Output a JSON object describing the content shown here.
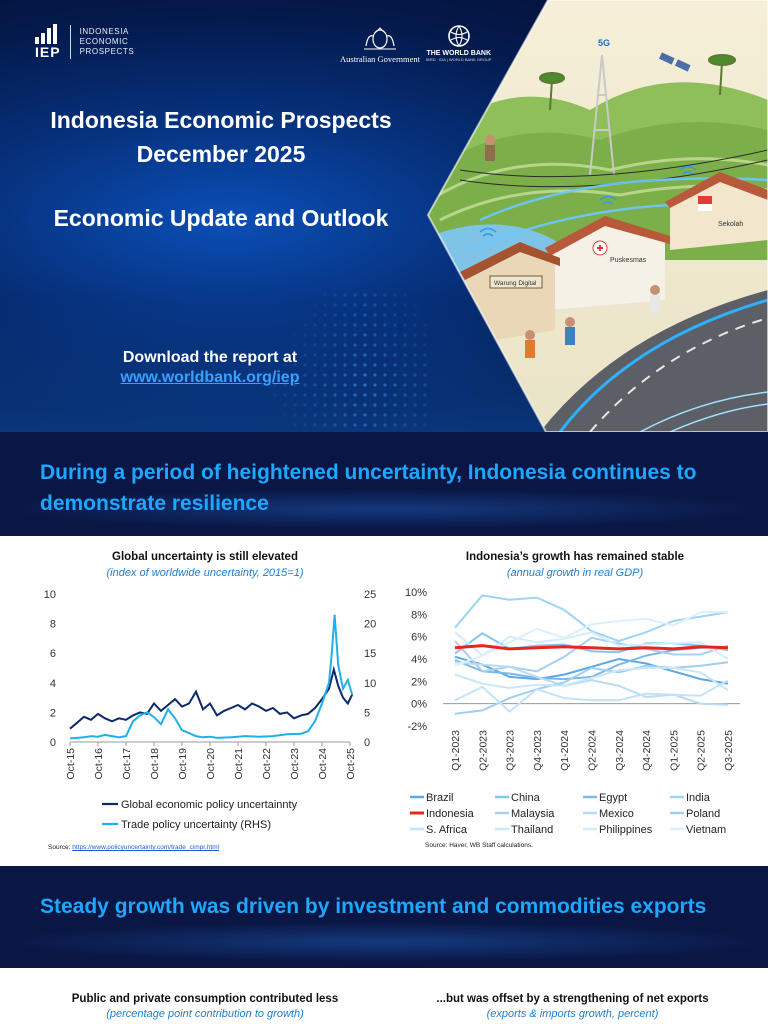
{
  "header": {
    "logo_abbr": "IEP",
    "logo_text": [
      "INDONESIA",
      "ECONOMIC",
      "PROSPECTS"
    ],
    "partner_gov": "Australian Government",
    "partner_wb": "THE WORLD BANK",
    "partner_wb_sub": "IBRD · IDA | WORLD BANK GROUP"
  },
  "hero": {
    "title_line1": "Indonesia Economic Prospects",
    "title_line2": "December 2025",
    "title_line3": "Economic Update and Outlook",
    "download_label": "Download the report at",
    "download_link": "www.worldbank.org/iep",
    "illustration_labels": {
      "tower": "5G",
      "shop": "Warung Digital",
      "clinic": "Puskesmas",
      "school": "Sekolah"
    }
  },
  "section1": {
    "heading": "During a period of heightened uncertainty, Indonesia continues to demonstrate resilience"
  },
  "section2": {
    "heading": "Steady growth was driven by investment and commodities exports"
  },
  "bottom_charts": {
    "left_title": "Public and private consumption contributed less",
    "left_subtitle": "(percentage point contribution to growth)",
    "right_title": "...but was offset by  a strengthening of net exports",
    "right_subtitle": "(exports & imports growth, percent)"
  },
  "chart_data": [
    {
      "type": "line",
      "title": "Global uncertainty is still elevated",
      "subtitle": "(index of worldwide uncertainty, 2015=1)",
      "x_ticks": [
        "Oct-15",
        "Oct-16",
        "Oct-17",
        "Oct-18",
        "Oct-19",
        "Oct-20",
        "Oct-21",
        "Oct-22",
        "Oct-23",
        "Oct-24",
        "Oct-25"
      ],
      "ylim_left": [
        0,
        10
      ],
      "yticks_left": [
        "0",
        "2",
        "4",
        "6",
        "8",
        "10"
      ],
      "ylim_right": [
        0,
        25
      ],
      "yticks_right": [
        "0",
        "5",
        "10",
        "15",
        "20",
        "25"
      ],
      "series": [
        {
          "name": "Global economic policy uncertainnty",
          "axis": "left",
          "color": "#0b2a6b",
          "x": [
            2015.75,
            2016.0,
            2016.25,
            2016.5,
            2016.75,
            2017.0,
            2017.25,
            2017.5,
            2017.75,
            2018.0,
            2018.25,
            2018.5,
            2018.75,
            2019.0,
            2019.25,
            2019.5,
            2019.75,
            2020.0,
            2020.25,
            2020.5,
            2020.75,
            2021.0,
            2021.25,
            2021.5,
            2021.75,
            2022.0,
            2022.25,
            2022.5,
            2022.75,
            2023.0,
            2023.25,
            2023.5,
            2023.75,
            2024.0,
            2024.25,
            2024.5,
            2024.75,
            2025.0,
            2025.17,
            2025.33,
            2025.5,
            2025.67,
            2025.83
          ],
          "values": [
            0.9,
            1.3,
            1.7,
            1.5,
            1.9,
            1.6,
            1.4,
            1.6,
            1.5,
            1.8,
            2.0,
            1.9,
            2.6,
            2.1,
            2.5,
            2.9,
            2.4,
            2.6,
            3.4,
            2.2,
            2.6,
            1.8,
            2.1,
            2.3,
            2.5,
            2.2,
            2.6,
            2.4,
            2.1,
            2.3,
            1.9,
            2.0,
            1.6,
            1.8,
            1.9,
            2.3,
            2.9,
            3.6,
            4.9,
            3.8,
            3.0,
            2.6,
            3.2
          ]
        },
        {
          "name": "Trade policy uncertainty (RHS)",
          "axis": "right",
          "color": "#1fb0ea",
          "x": [
            2015.75,
            2016.0,
            2016.25,
            2016.5,
            2016.75,
            2017.0,
            2017.25,
            2017.5,
            2017.75,
            2018.0,
            2018.25,
            2018.5,
            2018.75,
            2019.0,
            2019.25,
            2019.5,
            2019.75,
            2020.0,
            2020.25,
            2020.5,
            2020.75,
            2021.0,
            2021.5,
            2022.0,
            2022.5,
            2023.0,
            2023.5,
            2024.0,
            2024.25,
            2024.5,
            2024.75,
            2025.0,
            2025.1,
            2025.2,
            2025.33,
            2025.5,
            2025.67,
            2025.83
          ],
          "values": [
            0.6,
            0.7,
            0.8,
            1.0,
            0.9,
            1.2,
            1.0,
            0.8,
            1.0,
            3.5,
            4.5,
            5.0,
            4.2,
            3.0,
            5.5,
            4.0,
            2.0,
            1.5,
            1.0,
            0.8,
            0.9,
            0.7,
            0.8,
            1.0,
            0.9,
            1.0,
            1.3,
            1.4,
            1.8,
            3.5,
            6.5,
            10.0,
            15.0,
            21.5,
            13.0,
            9.0,
            10.5,
            8.0
          ]
        }
      ],
      "source_label": "Source: ",
      "source_link": "https://www.policyuncertainty.com/trade_cimpr.html"
    },
    {
      "type": "line",
      "title": "Indonesia’s growth has remained stable",
      "subtitle": "(annual growth in real GDP)",
      "categories": [
        "Q1-2023",
        "Q2-2023",
        "Q3-2023",
        "Q4-2023",
        "Q1-2024",
        "Q2-2024",
        "Q3-2024",
        "Q4-2024",
        "Q1-2025",
        "Q2-2025",
        "Q3-2025"
      ],
      "ylim": [
        -2,
        10
      ],
      "yticks": [
        "-2%",
        "0%",
        "2%",
        "4%",
        "6%",
        "8%",
        "10%"
      ],
      "highlight": "Indonesia",
      "series": [
        {
          "name": "Brazil",
          "color": "#5aa9e6",
          "values": [
            4.2,
            3.5,
            2.4,
            2.2,
            2.6,
            3.3,
            4.0,
            3.6,
            2.9,
            2.2,
            1.8
          ]
        },
        {
          "name": "China",
          "color": "#86c5f0",
          "values": [
            4.5,
            6.3,
            4.9,
            5.2,
            5.3,
            4.7,
            4.6,
            5.4,
            5.4,
            5.2,
            4.8
          ]
        },
        {
          "name": "Egypt",
          "color": "#7fb8e8",
          "values": [
            3.9,
            2.9,
            2.7,
            2.3,
            2.2,
            2.4,
            3.5,
            4.3,
            4.8,
            5.0,
            5.1
          ]
        },
        {
          "name": "India",
          "color": "#9ed4f5",
          "values": [
            6.8,
            9.7,
            9.3,
            9.5,
            8.4,
            6.5,
            5.6,
            6.4,
            7.4,
            7.8,
            8.2
          ]
        },
        {
          "name": "Indonesia",
          "color": "#e8251c",
          "values": [
            5.0,
            5.2,
            4.9,
            5.0,
            5.1,
            5.0,
            4.9,
            5.0,
            4.9,
            5.1,
            5.0
          ]
        },
        {
          "name": "Malaysia",
          "color": "#a8d0ee",
          "values": [
            5.6,
            2.9,
            3.3,
            2.9,
            4.2,
            5.9,
            5.4,
            4.9,
            4.4,
            4.4,
            5.2
          ]
        },
        {
          "name": "Mexico",
          "color": "#b8dcf4",
          "values": [
            3.7,
            3.5,
            3.3,
            2.4,
            1.6,
            2.1,
            1.6,
            0.6,
            0.8,
            0.0,
            -0.1
          ]
        },
        {
          "name": "Poland",
          "color": "#9fd0f2",
          "values": [
            -0.9,
            -0.6,
            0.5,
            1.3,
            1.9,
            3.2,
            2.8,
            3.4,
            3.2,
            3.4,
            3.7
          ]
        },
        {
          "name": "S. Africa",
          "color": "#c4e2f6",
          "values": [
            0.3,
            1.5,
            -0.7,
            1.3,
            0.5,
            0.3,
            0.3,
            0.9,
            0.8,
            0.7,
            2.1
          ]
        },
        {
          "name": "Thailand",
          "color": "#cbe6f8",
          "values": [
            2.6,
            1.8,
            1.4,
            1.7,
            1.6,
            2.3,
            3.0,
            3.2,
            3.2,
            2.8,
            1.2
          ]
        },
        {
          "name": "Philippines",
          "color": "#d6ecfa",
          "values": [
            6.4,
            4.3,
            6.0,
            5.5,
            5.8,
            6.4,
            5.2,
            5.3,
            5.4,
            5.5,
            4.0
          ]
        },
        {
          "name": "Vietnam",
          "color": "#ddeffb",
          "values": [
            3.4,
            4.3,
            5.5,
            6.7,
            5.9,
            7.1,
            7.4,
            7.6,
            7.0,
            8.2,
            8.2
          ]
        }
      ],
      "source": "Source: Haver, WB Staff calculations."
    }
  ]
}
